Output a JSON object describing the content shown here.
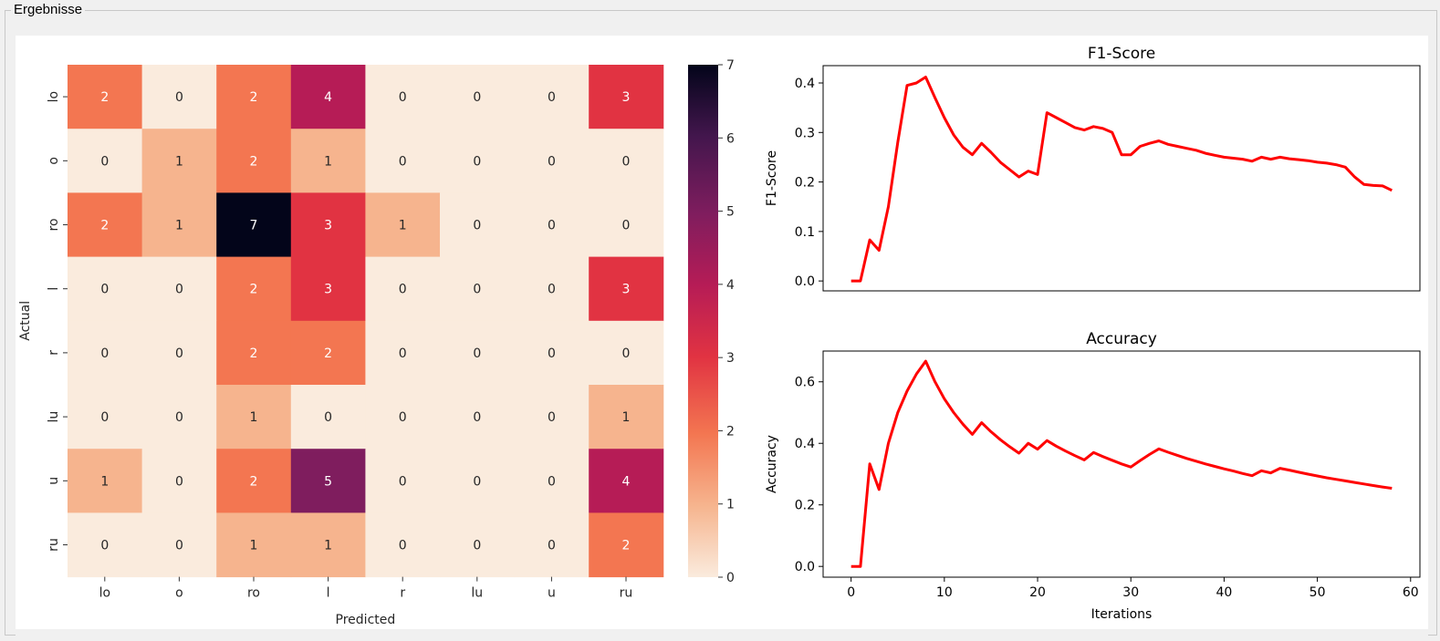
{
  "window": {
    "group_title": "Ergebnisse"
  },
  "chart_data": [
    {
      "type": "heatmap",
      "title": "",
      "xlabel": "Predicted",
      "ylabel": "Actual",
      "x_categories": [
        "lo",
        "o",
        "ro",
        "l",
        "r",
        "lu",
        "u",
        "ru"
      ],
      "y_categories": [
        "lo",
        "o",
        "ro",
        "l",
        "r",
        "lu",
        "u",
        "ru"
      ],
      "values": [
        [
          2,
          0,
          2,
          4,
          0,
          0,
          0,
          3
        ],
        [
          0,
          1,
          2,
          1,
          0,
          0,
          0,
          0
        ],
        [
          2,
          1,
          7,
          3,
          1,
          0,
          0,
          0
        ],
        [
          0,
          0,
          2,
          3,
          0,
          0,
          0,
          3
        ],
        [
          0,
          0,
          2,
          2,
          0,
          0,
          0,
          0
        ],
        [
          0,
          0,
          1,
          0,
          0,
          0,
          0,
          1
        ],
        [
          1,
          0,
          2,
          5,
          0,
          0,
          0,
          4
        ],
        [
          0,
          0,
          1,
          1,
          0,
          0,
          0,
          2
        ]
      ],
      "colorbar": {
        "min": 0,
        "max": 7,
        "ticks": [
          0,
          1,
          2,
          3,
          4,
          5,
          6,
          7
        ],
        "colormap": "rocket_r"
      }
    },
    {
      "type": "line",
      "title": "F1-Score",
      "xlabel": "",
      "ylabel": "F1-Score",
      "xlim": [
        -3,
        61
      ],
      "ylim": [
        -0.02,
        0.435
      ],
      "yticks": [
        0.0,
        0.1,
        0.2,
        0.3,
        0.4
      ],
      "ytick_labels": [
        "0.0",
        "0.1",
        "0.2",
        "0.3",
        "0.4"
      ],
      "color": "#ff0000",
      "x": [
        0,
        1,
        2,
        3,
        4,
        5,
        6,
        7,
        8,
        9,
        10,
        11,
        12,
        13,
        14,
        15,
        16,
        17,
        18,
        19,
        20,
        21,
        22,
        23,
        24,
        25,
        26,
        27,
        28,
        29,
        30,
        31,
        32,
        33,
        34,
        35,
        36,
        37,
        38,
        39,
        40,
        41,
        42,
        43,
        44,
        45,
        46,
        47,
        48,
        49,
        50,
        51,
        52,
        53,
        54,
        55,
        56,
        57,
        58
      ],
      "y": [
        0.0,
        0.0,
        0.083,
        0.062,
        0.15,
        0.28,
        0.395,
        0.4,
        0.412,
        0.37,
        0.33,
        0.295,
        0.27,
        0.255,
        0.278,
        0.26,
        0.24,
        0.225,
        0.21,
        0.222,
        0.215,
        0.34,
        0.33,
        0.32,
        0.31,
        0.305,
        0.312,
        0.308,
        0.3,
        0.255,
        0.255,
        0.272,
        0.278,
        0.283,
        0.276,
        0.272,
        0.268,
        0.264,
        0.258,
        0.254,
        0.25,
        0.248,
        0.246,
        0.242,
        0.25,
        0.246,
        0.25,
        0.247,
        0.245,
        0.243,
        0.24,
        0.238,
        0.235,
        0.23,
        0.21,
        0.195,
        0.193,
        0.192,
        0.183
      ]
    },
    {
      "type": "line",
      "title": "Accuracy",
      "xlabel": "Iterations",
      "ylabel": "Accuracy",
      "xlim": [
        -3,
        61
      ],
      "ylim": [
        -0.035,
        0.7
      ],
      "xticks": [
        0,
        10,
        20,
        30,
        40,
        50,
        60
      ],
      "xtick_labels": [
        "0",
        "10",
        "20",
        "30",
        "40",
        "50",
        "60"
      ],
      "yticks": [
        0.0,
        0.2,
        0.4,
        0.6
      ],
      "ytick_labels": [
        "0.0",
        "0.2",
        "0.4",
        "0.6"
      ],
      "color": "#ff0000",
      "x": [
        0,
        1,
        2,
        3,
        4,
        5,
        6,
        7,
        8,
        9,
        10,
        11,
        12,
        13,
        14,
        15,
        16,
        17,
        18,
        19,
        20,
        21,
        22,
        23,
        24,
        25,
        26,
        27,
        28,
        29,
        30,
        31,
        32,
        33,
        34,
        35,
        36,
        37,
        38,
        39,
        40,
        41,
        42,
        43,
        44,
        45,
        46,
        47,
        48,
        49,
        50,
        51,
        52,
        53,
        54,
        55,
        56,
        57,
        58
      ],
      "y": [
        0.0,
        0.0,
        0.333,
        0.25,
        0.4,
        0.5,
        0.57,
        0.625,
        0.667,
        0.6,
        0.545,
        0.5,
        0.462,
        0.429,
        0.467,
        0.438,
        0.412,
        0.389,
        0.368,
        0.4,
        0.381,
        0.409,
        0.391,
        0.375,
        0.36,
        0.346,
        0.37,
        0.357,
        0.345,
        0.333,
        0.323,
        0.344,
        0.364,
        0.382,
        0.371,
        0.361,
        0.351,
        0.342,
        0.333,
        0.325,
        0.317,
        0.31,
        0.302,
        0.295,
        0.311,
        0.304,
        0.319,
        0.313,
        0.306,
        0.3,
        0.294,
        0.288,
        0.283,
        0.278,
        0.273,
        0.268,
        0.263,
        0.258,
        0.254
      ]
    }
  ]
}
